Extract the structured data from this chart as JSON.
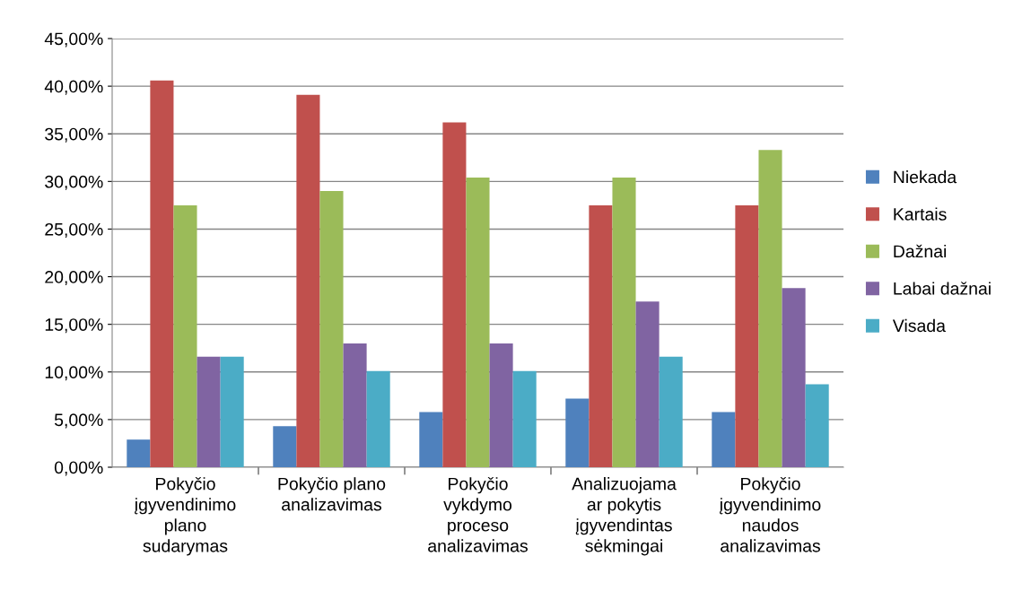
{
  "chart_data": {
    "type": "bar",
    "categories": [
      "Pokyčio\nįgyvendinimo\nplano\nsudarymas",
      "Pokyčio plano\nanalizavimas",
      "Pokyčio\nvykdymo\nproceso\nanalizavimas",
      "Analizuojama\nar pokytis\nįgyvendintas\nsėkmingai",
      "Pokyčio\nįgyvendinimo\nnaudos\nanalizavimas"
    ],
    "series": [
      {
        "name": "Niekada",
        "color": "#4f81bd",
        "values": [
          2.9,
          4.3,
          5.8,
          7.2,
          5.8
        ]
      },
      {
        "name": "Kartais",
        "color": "#c0504d",
        "values": [
          40.6,
          39.1,
          36.2,
          27.5,
          27.5
        ]
      },
      {
        "name": "Dažnai",
        "color": "#9bbb59",
        "values": [
          27.5,
          29.0,
          30.4,
          30.4,
          33.3
        ]
      },
      {
        "name": "Labai dažnai",
        "color": "#8064a2",
        "values": [
          11.6,
          13.0,
          13.0,
          17.4,
          18.8
        ]
      },
      {
        "name": "Visada",
        "color": "#4bacc6",
        "values": [
          11.6,
          10.1,
          10.1,
          11.6,
          8.7
        ]
      }
    ],
    "ylim": [
      0,
      45
    ],
    "yticks": [
      {
        "value": 0,
        "label": "0,00%"
      },
      {
        "value": 5,
        "label": "5,00%"
      },
      {
        "value": 10,
        "label": "10,00%"
      },
      {
        "value": 15,
        "label": "15,00%"
      },
      {
        "value": 20,
        "label": "20,00%"
      },
      {
        "value": 25,
        "label": "25,00%"
      },
      {
        "value": 30,
        "label": "30,00%"
      },
      {
        "value": 35,
        "label": "35,00%"
      },
      {
        "value": 40,
        "label": "40,00%"
      },
      {
        "value": 45,
        "label": "45,00%"
      }
    ],
    "grid": "y",
    "legend": "right"
  }
}
